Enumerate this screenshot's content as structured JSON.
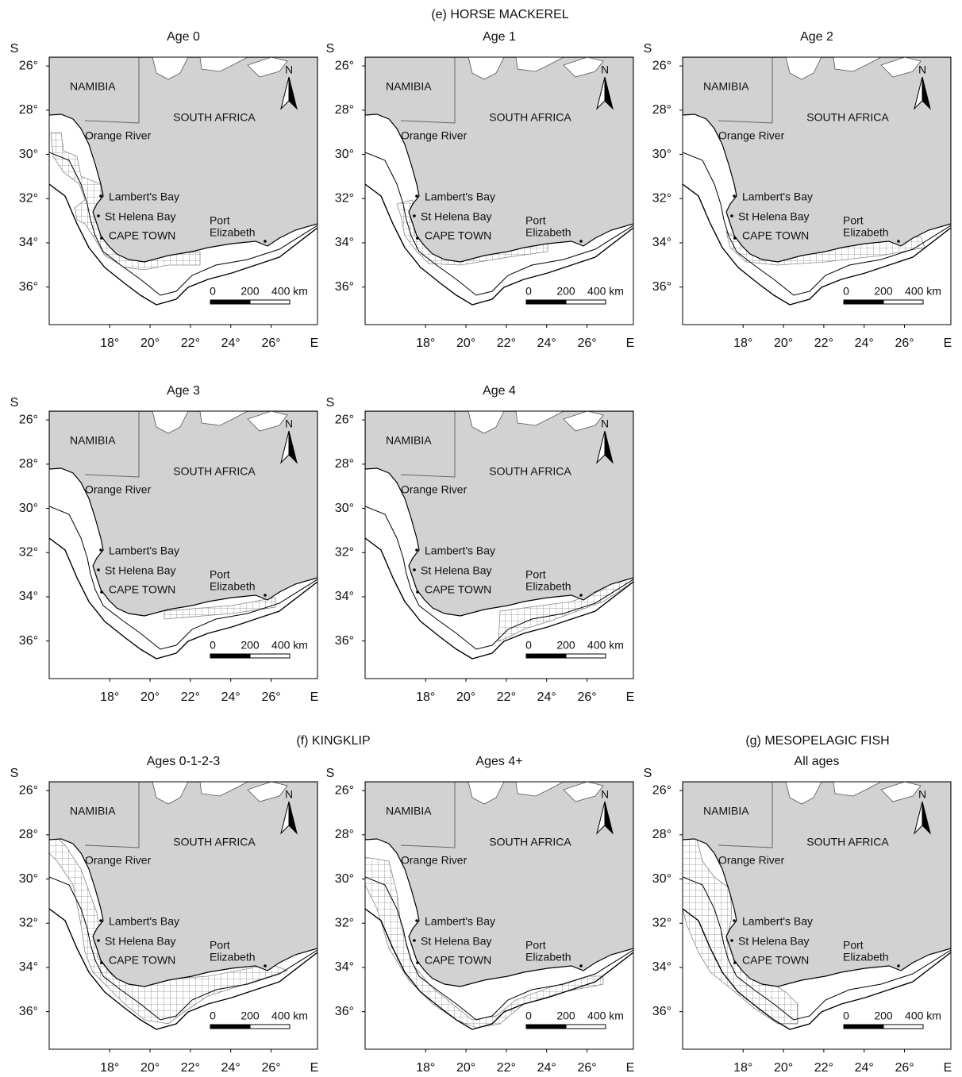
{
  "figure": {
    "sections": [
      {
        "title": "(e) HORSE MACKEREL",
        "panels": [
          {
            "title": "Age 0"
          },
          {
            "title": "Age 1"
          },
          {
            "title": "Age 2"
          },
          {
            "title": "Age 3"
          },
          {
            "title": "Age 4"
          }
        ]
      },
      {
        "title": "(f) KINGKLIP",
        "panels": [
          {
            "title": "Ages 0-1-2-3"
          },
          {
            "title": "Ages 4+"
          }
        ]
      },
      {
        "title": "(g) MESOPELAGIC FISH",
        "panels": [
          {
            "title": "All ages"
          }
        ]
      }
    ],
    "map": {
      "namibia": "NAMIBIA",
      "south_africa": "SOUTH AFRICA",
      "orange_river": "Orange River",
      "lamberts_bay": "Lambert's Bay",
      "st_helena_bay": "St Helena Bay",
      "cape_town": "CAPE TOWN",
      "port_elizabeth": [
        "Port",
        "Elizabeth"
      ],
      "north": "N",
      "scale": [
        "0",
        "200",
        "400 km"
      ],
      "x_axis_label": "E",
      "y_axis_label": "S",
      "xlim": [
        15.0,
        28.3
      ],
      "ylim": [
        37.7,
        25.6
      ],
      "xticks": [
        {
          "value": 18,
          "label": "18°"
        },
        {
          "value": 20,
          "label": "20°"
        },
        {
          "value": 22,
          "label": "22°"
        },
        {
          "value": 24,
          "label": "24°"
        },
        {
          "value": 26,
          "label": "26°"
        }
      ],
      "yticks": [
        {
          "value": 26,
          "label": "26°"
        },
        {
          "value": 28,
          "label": "28°"
        },
        {
          "value": 30,
          "label": "30°"
        },
        {
          "value": 32,
          "label": "32°"
        },
        {
          "value": 34,
          "label": "34°"
        },
        {
          "value": 36,
          "label": "36°"
        }
      ]
    }
  }
}
